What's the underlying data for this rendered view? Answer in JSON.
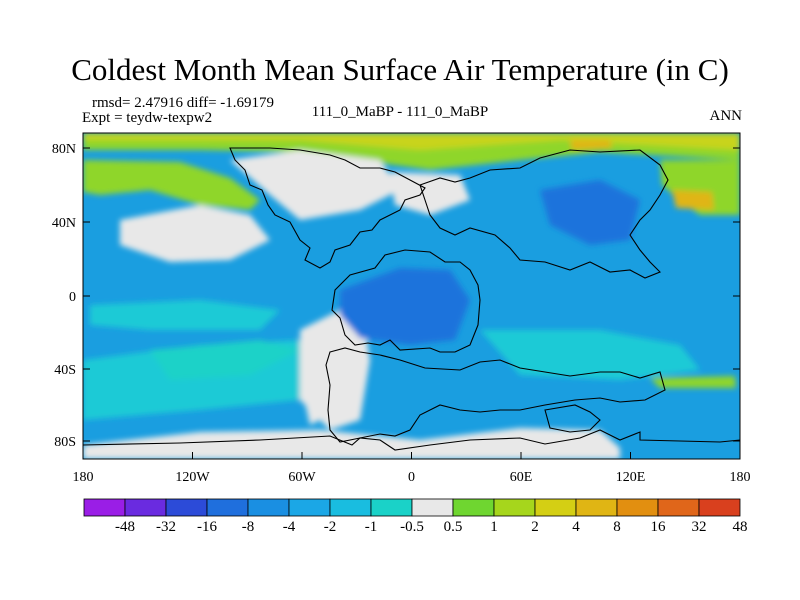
{
  "title": "Coldest Month Mean Surface Air Temperature (in C)",
  "stats": "rmsd= 2.47916  diff= -1.69179",
  "experiment": "Expt = teydw-texpw2",
  "comparison": "111_0_MaBP - 111_0_MaBP",
  "season": "ANN",
  "lat_labels": [
    "80N",
    "40N",
    "0",
    "40S",
    "80S"
  ],
  "lon_labels": [
    "180",
    "120W",
    "60W",
    "0",
    "60E",
    "120E",
    "180"
  ],
  "colorbar": {
    "labels": [
      "-48",
      "-32",
      "-16",
      "-8",
      "-4",
      "-2",
      "-1",
      "-0.5",
      "0.5",
      "1",
      "2",
      "4",
      "8",
      "16",
      "32",
      "48"
    ],
    "colors": [
      "#9a1ee6",
      "#6a2be0",
      "#2c4bd8",
      "#1f6fdd",
      "#1a8fe2",
      "#1ba7e6",
      "#19bde0",
      "#1ad2c8",
      "#e8e8e8",
      "#6fd630",
      "#a6d61c",
      "#d4cf14",
      "#e0b514",
      "#e28f10",
      "#e0661a",
      "#d9401e"
    ]
  },
  "colors": {
    "ocean": "#1a9ee0",
    "deep_blue": "#1a73dc",
    "cyan": "#1ccad6",
    "teal": "#1ad2c8",
    "white": "#e8e8e8",
    "green": "#8fd62a",
    "yellow": "#c8d41a",
    "orange": "#e0b514"
  }
}
